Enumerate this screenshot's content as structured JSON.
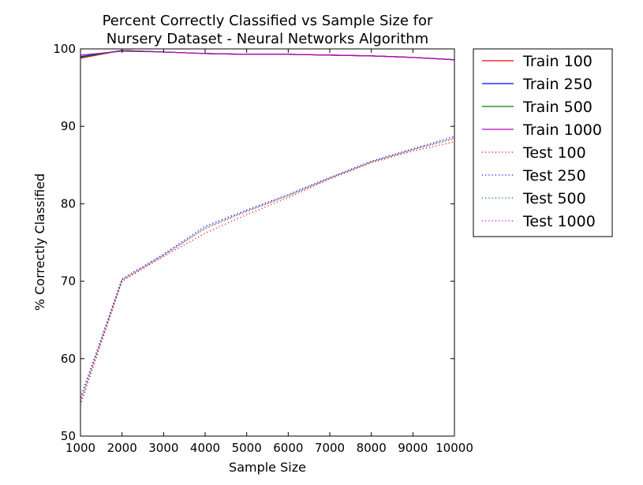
{
  "chart_data": {
    "type": "line",
    "title_line1": "Percent Correctly Classified vs Sample Size for",
    "title_line2": "Nursery Dataset - Neural Networks Algorithm",
    "xlabel": "Sample Size",
    "ylabel": "% Correctly Classified",
    "xlim": [
      1000,
      10000
    ],
    "ylim": [
      50,
      100
    ],
    "xticks": [
      1000,
      2000,
      3000,
      4000,
      5000,
      6000,
      7000,
      8000,
      9000,
      10000
    ],
    "yticks": [
      50,
      60,
      70,
      80,
      90,
      100
    ],
    "grid": false,
    "legend_position": "outside-right",
    "x": [
      1000,
      2000,
      3000,
      4000,
      5000,
      6000,
      7000,
      8000,
      9000,
      10000
    ],
    "series": [
      {
        "name": "Train 100",
        "color": "#ff0000",
        "style": "solid",
        "values": [
          98.8,
          99.8,
          99.6,
          99.4,
          99.3,
          99.3,
          99.2,
          99.1,
          98.9,
          98.6
        ]
      },
      {
        "name": "Train 250",
        "color": "#0000ff",
        "style": "solid",
        "values": [
          99.0,
          99.8,
          99.6,
          99.4,
          99.3,
          99.3,
          99.2,
          99.1,
          98.9,
          98.6
        ]
      },
      {
        "name": "Train 500",
        "color": "#008000",
        "style": "solid",
        "values": [
          98.9,
          99.8,
          99.6,
          99.4,
          99.3,
          99.3,
          99.2,
          99.1,
          98.9,
          98.6
        ]
      },
      {
        "name": "Train 1000",
        "color": "#bf00bf",
        "style": "solid",
        "values": [
          99.2,
          99.7,
          99.6,
          99.4,
          99.3,
          99.3,
          99.2,
          99.1,
          98.9,
          98.6
        ]
      },
      {
        "name": "Test 100",
        "color": "#ff0000",
        "style": "dotted",
        "values": [
          54.0,
          70.0,
          73.2,
          76.2,
          78.6,
          80.8,
          83.2,
          85.3,
          86.8,
          88.0
        ]
      },
      {
        "name": "Test 250",
        "color": "#0000ff",
        "style": "dotted",
        "values": [
          55.0,
          70.3,
          73.5,
          77.1,
          79.2,
          81.2,
          83.4,
          85.5,
          87.1,
          88.7
        ]
      },
      {
        "name": "Test 500",
        "color": "#008000",
        "style": "dotted",
        "values": [
          54.6,
          70.1,
          73.4,
          76.8,
          79.0,
          81.1,
          83.3,
          85.4,
          87.0,
          88.4
        ]
      },
      {
        "name": "Test 1000",
        "color": "#bf00bf",
        "style": "dotted",
        "values": [
          54.4,
          70.2,
          73.3,
          76.9,
          79.1,
          81.0,
          83.3,
          85.4,
          87.0,
          88.5
        ]
      }
    ]
  }
}
